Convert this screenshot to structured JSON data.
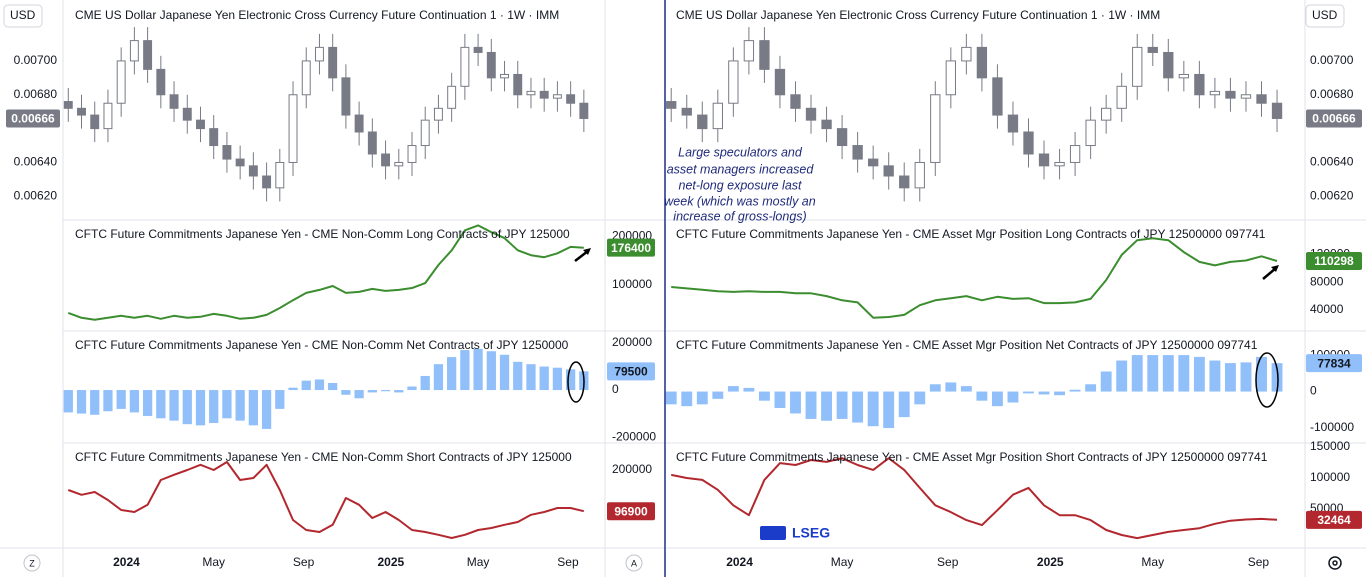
{
  "ui": {
    "currency_left": "USD",
    "currency_right": "USD",
    "corner_left": "Z",
    "corner_mid": "A",
    "logo": "LSEG"
  },
  "annotation": [
    "Large speculators and",
    "asset managers increased",
    "net-long  exposure last",
    "week (which was mostly an",
    "increase of gross-longs)"
  ],
  "chart_data": [
    {
      "type": "panel",
      "x": [
        2023.78,
        2023.83,
        2023.88,
        2023.93,
        2023.98,
        2024.03,
        2024.08,
        2024.13,
        2024.18,
        2024.23,
        2024.28,
        2024.33,
        2024.38,
        2024.43,
        2024.48,
        2024.53,
        2024.58,
        2024.63,
        2024.68,
        2024.73,
        2024.78,
        2024.83,
        2024.88,
        2024.93,
        2024.98,
        2025.03,
        2025.08,
        2025.13,
        2025.18,
        2025.23,
        2025.28,
        2025.33,
        2025.38,
        2025.43,
        2025.48,
        2025.53,
        2025.58,
        2025.63,
        2025.68,
        2025.73
      ],
      "xlim": [
        2023.76,
        2025.81
      ],
      "xticks": [
        {
          "value": 2024,
          "label": "2024"
        },
        {
          "value": 2024.33,
          "label": "May"
        },
        {
          "value": 2024.67,
          "label": "Sep"
        },
        {
          "value": 2025,
          "label": "2025"
        },
        {
          "value": 2025.33,
          "label": "May"
        },
        {
          "value": 2025.67,
          "label": "Sep"
        }
      ],
      "panes": [
        {
          "type": "candlestick",
          "title": "CME US Dollar Japanese Yen Electronic Cross Currency Future Continuation 1 · 1W · IMM",
          "color": "#787b86",
          "open": [
            0.00676,
            0.00672,
            0.00668,
            0.0066,
            0.00675,
            0.007,
            0.00712,
            0.00695,
            0.0068,
            0.00672,
            0.00665,
            0.0066,
            0.0065,
            0.00642,
            0.00638,
            0.00632,
            0.00625,
            0.0064,
            0.0068,
            0.007,
            0.00708,
            0.0069,
            0.00668,
            0.00658,
            0.00645,
            0.00638,
            0.0064,
            0.0065,
            0.00665,
            0.00672,
            0.00685,
            0.00708,
            0.00705,
            0.0069,
            0.00692,
            0.0068,
            0.00682,
            0.00678,
            0.0068,
            0.00675
          ],
          "high": [
            0.00684,
            0.0068,
            0.00676,
            0.00683,
            0.00708,
            0.0072,
            0.0072,
            0.00703,
            0.00688,
            0.0068,
            0.00673,
            0.00668,
            0.00658,
            0.0065,
            0.00646,
            0.0064,
            0.00648,
            0.00688,
            0.00708,
            0.00716,
            0.00716,
            0.00698,
            0.00676,
            0.00666,
            0.00653,
            0.00648,
            0.00658,
            0.00673,
            0.0068,
            0.00693,
            0.00716,
            0.00716,
            0.00713,
            0.007,
            0.007,
            0.0069,
            0.0069,
            0.00688,
            0.00688,
            0.00683
          ],
          "low": [
            0.00664,
            0.0066,
            0.00652,
            0.00652,
            0.00667,
            0.00692,
            0.00687,
            0.00672,
            0.00664,
            0.00657,
            0.00652,
            0.00642,
            0.00634,
            0.0063,
            0.00624,
            0.00617,
            0.00617,
            0.00632,
            0.00672,
            0.00692,
            0.00682,
            0.0066,
            0.0065,
            0.00637,
            0.0063,
            0.0063,
            0.00632,
            0.00642,
            0.00657,
            0.00664,
            0.00677,
            0.00697,
            0.00682,
            0.00682,
            0.00672,
            0.00672,
            0.0067,
            0.0067,
            0.00667,
            0.00658
          ],
          "close": [
            0.00672,
            0.00668,
            0.0066,
            0.00675,
            0.007,
            0.00712,
            0.00695,
            0.0068,
            0.00672,
            0.00665,
            0.0066,
            0.0065,
            0.00642,
            0.00638,
            0.00632,
            0.00625,
            0.0064,
            0.0068,
            0.007,
            0.00708,
            0.0069,
            0.00668,
            0.00658,
            0.00645,
            0.00638,
            0.0064,
            0.0065,
            0.00665,
            0.00672,
            0.00685,
            0.00708,
            0.00705,
            0.0069,
            0.00692,
            0.0068,
            0.00682,
            0.00678,
            0.0068,
            0.00675,
            0.00666
          ],
          "ylim": [
            0.00606,
            0.00736
          ],
          "yticks": [
            {
              "value": 0.007,
              "label": "0.00700"
            },
            {
              "value": 0.0068,
              "label": "0.00680"
            },
            {
              "value": 0.0064,
              "label": "0.00640"
            },
            {
              "value": 0.0062,
              "label": "0.00620"
            }
          ]
        },
        {
          "type": "line",
          "title": "CFTC Future Commitments Japanese Yen - CME Non-Comm Long Contracts of JPY 125000",
          "color": "#3b8d2f",
          "values": [
            43000,
            33000,
            29000,
            33000,
            37000,
            33000,
            37000,
            31000,
            37000,
            33000,
            35000,
            41000,
            37000,
            31000,
            33000,
            39000,
            53000,
            69000,
            84000,
            90000,
            98000,
            84000,
            86000,
            92000,
            88000,
            90000,
            94000,
            104000,
            141000,
            171000,
            212000,
            222000,
            208000,
            196000,
            171000,
            161000,
            157000,
            165000,
            178000,
            176400
          ],
          "ylim": [
            6000,
            233000
          ],
          "yticks": [
            200000,
            100000
          ]
        },
        {
          "type": "bar",
          "title": "CFTC Future Commitments Japanese Yen - CME Non-Comm Net Contracts of JPY 1250000",
          "color": "#90bff9",
          "values": [
            -95000,
            -100000,
            -105000,
            -90000,
            -80000,
            -95000,
            -110000,
            -120000,
            -130000,
            -145000,
            -150000,
            -140000,
            -120000,
            -130000,
            -150000,
            -165000,
            -80000,
            10000,
            40000,
            45000,
            30000,
            -20000,
            -35000,
            -10000,
            -5000,
            -10000,
            15000,
            60000,
            110000,
            140000,
            170000,
            175000,
            165000,
            150000,
            120000,
            110000,
            100000,
            95000,
            88000,
            79500
          ],
          "ylim": [
            -225000,
            251000
          ],
          "yticks": [
            200000,
            0,
            -200000
          ]
        },
        {
          "type": "line",
          "title": "CFTC Future Commitments Japanese Yen - CME Non-Comm Short Contracts of JPY 125000",
          "color": "#b2282e",
          "values": [
            150000,
            138000,
            145000,
            125000,
            100000,
            95000,
            113000,
            175000,
            188000,
            200000,
            213000,
            200000,
            220000,
            175000,
            180000,
            213000,
            150000,
            75000,
            50000,
            45000,
            63000,
            130000,
            113000,
            80000,
            95000,
            75000,
            50000,
            45000,
            38000,
            30000,
            38000,
            50000,
            55000,
            63000,
            70000,
            88000,
            95000,
            105000,
            105000,
            96900
          ],
          "ylim": [
            5000,
            267500
          ],
          "yticks": [
            200000
          ]
        }
      ]
    },
    {
      "type": "panel",
      "x": [
        2023.78,
        2023.83,
        2023.88,
        2023.93,
        2023.98,
        2024.03,
        2024.08,
        2024.13,
        2024.18,
        2024.23,
        2024.28,
        2024.33,
        2024.38,
        2024.43,
        2024.48,
        2024.53,
        2024.58,
        2024.63,
        2024.68,
        2024.73,
        2024.78,
        2024.83,
        2024.88,
        2024.93,
        2024.98,
        2025.03,
        2025.08,
        2025.13,
        2025.18,
        2025.23,
        2025.28,
        2025.33,
        2025.38,
        2025.43,
        2025.48,
        2025.53,
        2025.58,
        2025.63,
        2025.68,
        2025.73
      ],
      "xlim": [
        2023.76,
        2025.82
      ],
      "xticks": [
        {
          "value": 2024,
          "label": "2024"
        },
        {
          "value": 2024.33,
          "label": "May"
        },
        {
          "value": 2024.67,
          "label": "Sep"
        },
        {
          "value": 2025,
          "label": "2025"
        },
        {
          "value": 2025.33,
          "label": "May"
        },
        {
          "value": 2025.67,
          "label": "Sep"
        }
      ],
      "panes": [
        {
          "type": "candlestick",
          "title": "CME US Dollar Japanese Yen Electronic Cross Currency Future Continuation 1 · 1W · IMM",
          "color": "#787b86",
          "open": [
            0.00676,
            0.00672,
            0.00668,
            0.0066,
            0.00675,
            0.007,
            0.00712,
            0.00695,
            0.0068,
            0.00672,
            0.00665,
            0.0066,
            0.0065,
            0.00642,
            0.00638,
            0.00632,
            0.00625,
            0.0064,
            0.0068,
            0.007,
            0.00708,
            0.0069,
            0.00668,
            0.00658,
            0.00645,
            0.00638,
            0.0064,
            0.0065,
            0.00665,
            0.00672,
            0.00685,
            0.00708,
            0.00705,
            0.0069,
            0.00692,
            0.0068,
            0.00682,
            0.00678,
            0.0068,
            0.00675
          ],
          "high": [
            0.00684,
            0.0068,
            0.00676,
            0.00683,
            0.00708,
            0.0072,
            0.0072,
            0.00703,
            0.00688,
            0.0068,
            0.00673,
            0.00668,
            0.00658,
            0.0065,
            0.00646,
            0.0064,
            0.00648,
            0.00688,
            0.00708,
            0.00716,
            0.00716,
            0.00698,
            0.00676,
            0.00666,
            0.00653,
            0.00648,
            0.00658,
            0.00673,
            0.0068,
            0.00693,
            0.00716,
            0.00716,
            0.00713,
            0.007,
            0.007,
            0.0069,
            0.0069,
            0.00688,
            0.00688,
            0.00683
          ],
          "low": [
            0.00664,
            0.0066,
            0.00652,
            0.00652,
            0.00667,
            0.00692,
            0.00687,
            0.00672,
            0.00664,
            0.00657,
            0.00652,
            0.00642,
            0.00634,
            0.0063,
            0.00624,
            0.00617,
            0.00617,
            0.00632,
            0.00672,
            0.00692,
            0.00682,
            0.0066,
            0.0065,
            0.00637,
            0.0063,
            0.0063,
            0.00632,
            0.00642,
            0.00657,
            0.00664,
            0.00677,
            0.00697,
            0.00682,
            0.00682,
            0.00672,
            0.00672,
            0.0067,
            0.0067,
            0.00667,
            0.00658
          ],
          "close": [
            0.00672,
            0.00668,
            0.0066,
            0.00675,
            0.007,
            0.00712,
            0.00695,
            0.0068,
            0.00672,
            0.00665,
            0.0066,
            0.0065,
            0.00642,
            0.00638,
            0.00632,
            0.00625,
            0.0064,
            0.0068,
            0.007,
            0.00708,
            0.0069,
            0.00668,
            0.00658,
            0.00645,
            0.00638,
            0.0064,
            0.0065,
            0.00665,
            0.00672,
            0.00685,
            0.00708,
            0.00705,
            0.0069,
            0.00692,
            0.0068,
            0.00682,
            0.00678,
            0.0068,
            0.00675,
            0.00666
          ],
          "ylim": [
            0.00606,
            0.00736
          ],
          "yticks": [
            {
              "value": 0.007,
              "label": "0.00700"
            },
            {
              "value": 0.0068,
              "label": "0.00680"
            },
            {
              "value": 0.0064,
              "label": "0.00640"
            },
            {
              "value": 0.0062,
              "label": "0.00620"
            }
          ]
        },
        {
          "type": "line",
          "title": "CFTC Future Commitments Japanese Yen - CME Asset Mgr Position Long Contracts of JPY 12500000 097741",
          "color": "#3b8d2f",
          "values": [
            73000,
            71000,
            69000,
            67000,
            66000,
            67000,
            66000,
            66000,
            64000,
            64000,
            60000,
            54000,
            51000,
            29000,
            30000,
            33000,
            47000,
            54000,
            57000,
            60000,
            54000,
            59000,
            56000,
            57000,
            50000,
            50000,
            51000,
            56000,
            83000,
            119000,
            140000,
            143000,
            140000,
            123000,
            109000,
            104000,
            109000,
            111000,
            117000,
            110298
          ],
          "ylim": [
            10000,
            169000
          ],
          "yticks": [
            120000,
            80000,
            40000
          ]
        },
        {
          "type": "bar",
          "title": "CFTC Future Commitments Japanese Yen - CME Asset Mgr Position Net Contracts of JPY 12500000 097741",
          "color": "#90bff9",
          "values": [
            -35000,
            -40000,
            -35000,
            -20000,
            15000,
            10000,
            -25000,
            -45000,
            -60000,
            -75000,
            -80000,
            -75000,
            -85000,
            -95000,
            -100000,
            -70000,
            -35000,
            20000,
            25000,
            15000,
            -25000,
            -40000,
            -30000,
            -5000,
            -8000,
            -10000,
            5000,
            20000,
            55000,
            85000,
            100000,
            100000,
            100000,
            100000,
            95000,
            85000,
            78000,
            80000,
            95000,
            77834
          ],
          "ylim": [
            -141000,
            166000
          ],
          "yticks": [
            100000,
            0,
            -100000
          ]
        },
        {
          "type": "line",
          "title": "CFTC Future Commitments Japanese Yen - CME Asset Mgr Position Short Contracts of JPY 12500000 097741",
          "color": "#b2282e",
          "values": [
            105000,
            100000,
            97000,
            81000,
            56000,
            40000,
            97000,
            124000,
            121000,
            129000,
            126000,
            132000,
            121000,
            113000,
            132000,
            113000,
            84000,
            56000,
            45000,
            32000,
            24000,
            48000,
            73000,
            84000,
            56000,
            40000,
            40000,
            32000,
            16000,
            8000,
            3000,
            8000,
            13000,
            16000,
            19000,
            26000,
            31000,
            33000,
            34000,
            32464
          ],
          "ylim": [
            -13000,
            156500
          ],
          "yticks": [
            150000,
            100000,
            50000
          ]
        }
      ]
    }
  ]
}
